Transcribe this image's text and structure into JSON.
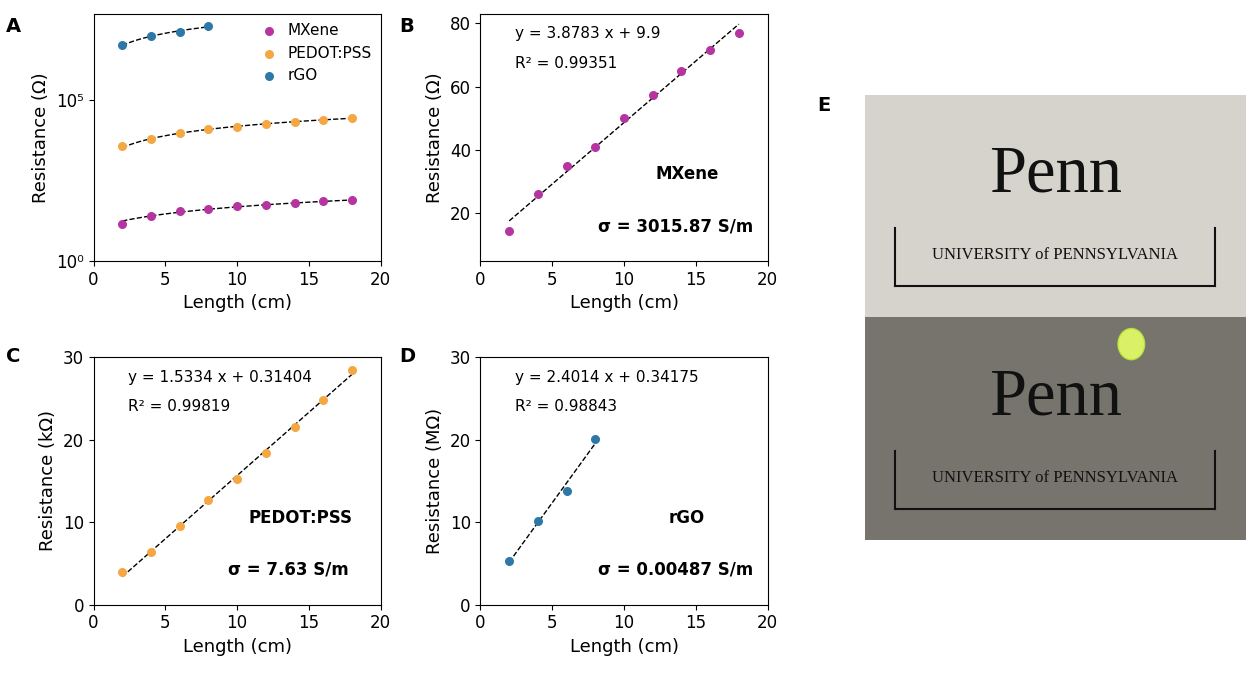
{
  "chart_data": [
    {
      "type": "scatter",
      "panel_label": "A",
      "xlabel": "Length (cm)",
      "ylabel": "Resistance (Ω)",
      "log": "y",
      "legend": "upper right",
      "xlim": [
        0,
        20
      ],
      "xticks": [
        0,
        5,
        10,
        15,
        20
      ],
      "ylim": [
        1,
        50000000
      ],
      "yticks": [
        {
          "value": 1,
          "label": "10⁰"
        },
        {
          "value": 100000,
          "label": "10⁵"
        }
      ],
      "series": [
        {
          "name": "MXene",
          "color": "#b5349f",
          "marker": "o",
          "x": [
            2,
            4,
            6,
            8,
            10,
            12,
            14,
            16,
            18
          ],
          "values": [
            14.5,
            26,
            35,
            41,
            50,
            57.5,
            65,
            71.5,
            77
          ],
          "fit": {
            "slope": 3.8783,
            "intercept": 9.9
          }
        },
        {
          "name": "PEDOT:PSS",
          "color": "#f5a742",
          "marker": "o",
          "x": [
            2,
            4,
            6,
            8,
            10,
            12,
            14,
            16,
            18
          ],
          "values": [
            3900,
            6400,
            9500,
            12700,
            15200,
            18400,
            21500,
            24800,
            28500
          ],
          "fit": {
            "slope": 1533.4,
            "intercept": 314.04
          }
        },
        {
          "name": "rGO",
          "color": "#2e78a8",
          "marker": "o",
          "x": [
            2,
            4,
            6,
            8
          ],
          "values": [
            5300000,
            10100000,
            13800000,
            20100000
          ],
          "fit": {
            "slope": 2401400,
            "intercept": 341750
          }
        }
      ]
    },
    {
      "type": "scatter",
      "panel_label": "B",
      "xlabel": "Length (cm)",
      "ylabel": "Resistance (Ω)",
      "xlim": [
        0,
        20
      ],
      "xticks": [
        0,
        5,
        10,
        15,
        20
      ],
      "ylim": [
        5,
        83
      ],
      "yticks": [
        20,
        40,
        60,
        80
      ],
      "equation": "y = 3.8783 x + 9.9",
      "r2": "R² = 0.99351",
      "conductivity": "σ = 3015.87 S/m",
      "series": [
        {
          "name": "MXene",
          "color": "#b5349f",
          "marker": "o",
          "x": [
            2,
            4,
            6,
            8,
            10,
            12,
            14,
            16,
            18
          ],
          "values": [
            14.5,
            26,
            35,
            41,
            50,
            57.5,
            65,
            71.5,
            77
          ],
          "fit": {
            "slope": 3.8783,
            "intercept": 9.9
          }
        }
      ]
    },
    {
      "type": "scatter",
      "panel_label": "C",
      "xlabel": "Length (cm)",
      "ylabel": "Resistance (kΩ)",
      "xlim": [
        0,
        20
      ],
      "xticks": [
        0,
        5,
        10,
        15,
        20
      ],
      "ylim": [
        0,
        30
      ],
      "yticks": [
        0,
        10,
        20,
        30
      ],
      "equation": "y = 1.5334 x + 0.31404",
      "r2": "R² = 0.99819",
      "conductivity": "σ = 7.63 S/m",
      "series": [
        {
          "name": "PEDOT:PSS",
          "color": "#f5a742",
          "marker": "o",
          "x": [
            2,
            4,
            6,
            8,
            10,
            12,
            14,
            16,
            18
          ],
          "values": [
            3.9,
            6.4,
            9.5,
            12.7,
            15.2,
            18.4,
            21.5,
            24.8,
            28.5
          ],
          "fit": {
            "slope": 1.5334,
            "intercept": 0.31404
          }
        }
      ]
    },
    {
      "type": "scatter",
      "panel_label": "D",
      "xlabel": "Length (cm)",
      "ylabel": "Resistance (MΩ)",
      "xlim": [
        0,
        20
      ],
      "xticks": [
        0,
        5,
        10,
        15,
        20
      ],
      "ylim": [
        0,
        30
      ],
      "yticks": [
        0,
        10,
        20,
        30
      ],
      "equation": "y = 2.4014 x + 0.34175",
      "r2": "R² = 0.98843",
      "conductivity": "σ = 0.00487 S/m",
      "series": [
        {
          "name": "rGO",
          "color": "#2e78a8",
          "marker": "o",
          "x": [
            2,
            4,
            6,
            8
          ],
          "values": [
            5.3,
            10.1,
            13.8,
            20.1
          ],
          "fit": {
            "slope": 2.4014,
            "intercept": 0.34175
          }
        }
      ]
    }
  ],
  "photo": {
    "panel_label": "E",
    "logo": "Penn",
    "subtitle": "UNIVERSITY of PENNSYLVANIA"
  }
}
